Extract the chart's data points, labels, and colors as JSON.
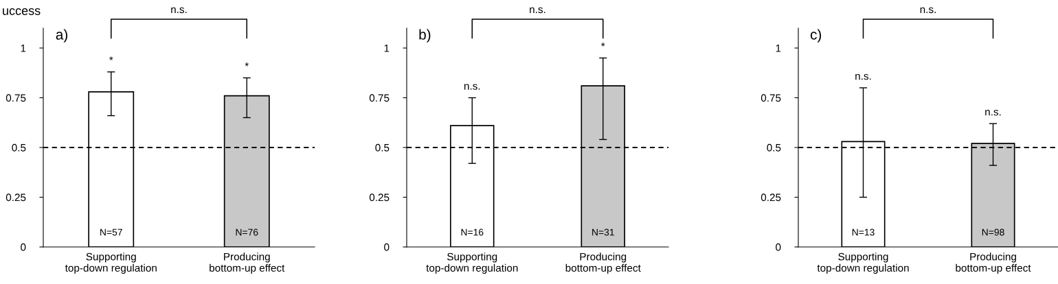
{
  "chart_data": [
    {
      "type": "bar",
      "title": "a)",
      "ylabel": "uccess",
      "categories": [
        "Supporting\ntop-down regulation",
        "Producing\nbottom-up effect"
      ],
      "values": [
        0.78,
        0.76
      ],
      "colors": [
        "#ffffff",
        "#c8c8c8"
      ],
      "errors": [
        [
          0.66,
          0.88
        ],
        [
          0.65,
          0.85
        ]
      ],
      "ylim": [
        0,
        1.1
      ],
      "yticks": [
        0,
        0.25,
        0.5,
        0.75,
        1
      ],
      "grid": false,
      "ref_lines": [
        {
          "axis": "y",
          "value": 0.5,
          "line_style": "dashed",
          "color": "#000000"
        }
      ],
      "annotations": [
        "*",
        "*",
        "N=57",
        "N=76",
        "n.s."
      ]
    },
    {
      "type": "bar",
      "title": "b)",
      "categories": [
        "Supporting\ntop-down regulation",
        "Producing\nbottom-up effect"
      ],
      "values": [
        0.61,
        0.81
      ],
      "colors": [
        "#ffffff",
        "#c8c8c8"
      ],
      "errors": [
        [
          0.42,
          0.75
        ],
        [
          0.54,
          0.95
        ]
      ],
      "ylim": [
        0,
        1.1
      ],
      "yticks": [
        0,
        0.25,
        0.5,
        0.75,
        1
      ],
      "grid": false,
      "ref_lines": [
        {
          "axis": "y",
          "value": 0.5,
          "line_style": "dashed",
          "color": "#000000"
        }
      ],
      "annotations": [
        "n.s.",
        "*",
        "N=16",
        "N=31",
        "n.s."
      ]
    },
    {
      "type": "bar",
      "title": "c)",
      "categories": [
        "Supporting\ntop-down regulation",
        "Producing\nbottom-up effect"
      ],
      "values": [
        0.53,
        0.52
      ],
      "colors": [
        "#ffffff",
        "#c8c8c8"
      ],
      "errors": [
        [
          0.25,
          0.8
        ],
        [
          0.41,
          0.62
        ]
      ],
      "ylim": [
        0,
        1.1
      ],
      "yticks": [
        0,
        0.25,
        0.5,
        0.75,
        1
      ],
      "grid": false,
      "ref_lines": [
        {
          "axis": "y",
          "value": 0.5,
          "line_style": "dashed",
          "color": "#000000"
        }
      ],
      "annotations": [
        "n.s.",
        "n.s.",
        "N=13",
        "N=98",
        "n.s."
      ]
    }
  ]
}
